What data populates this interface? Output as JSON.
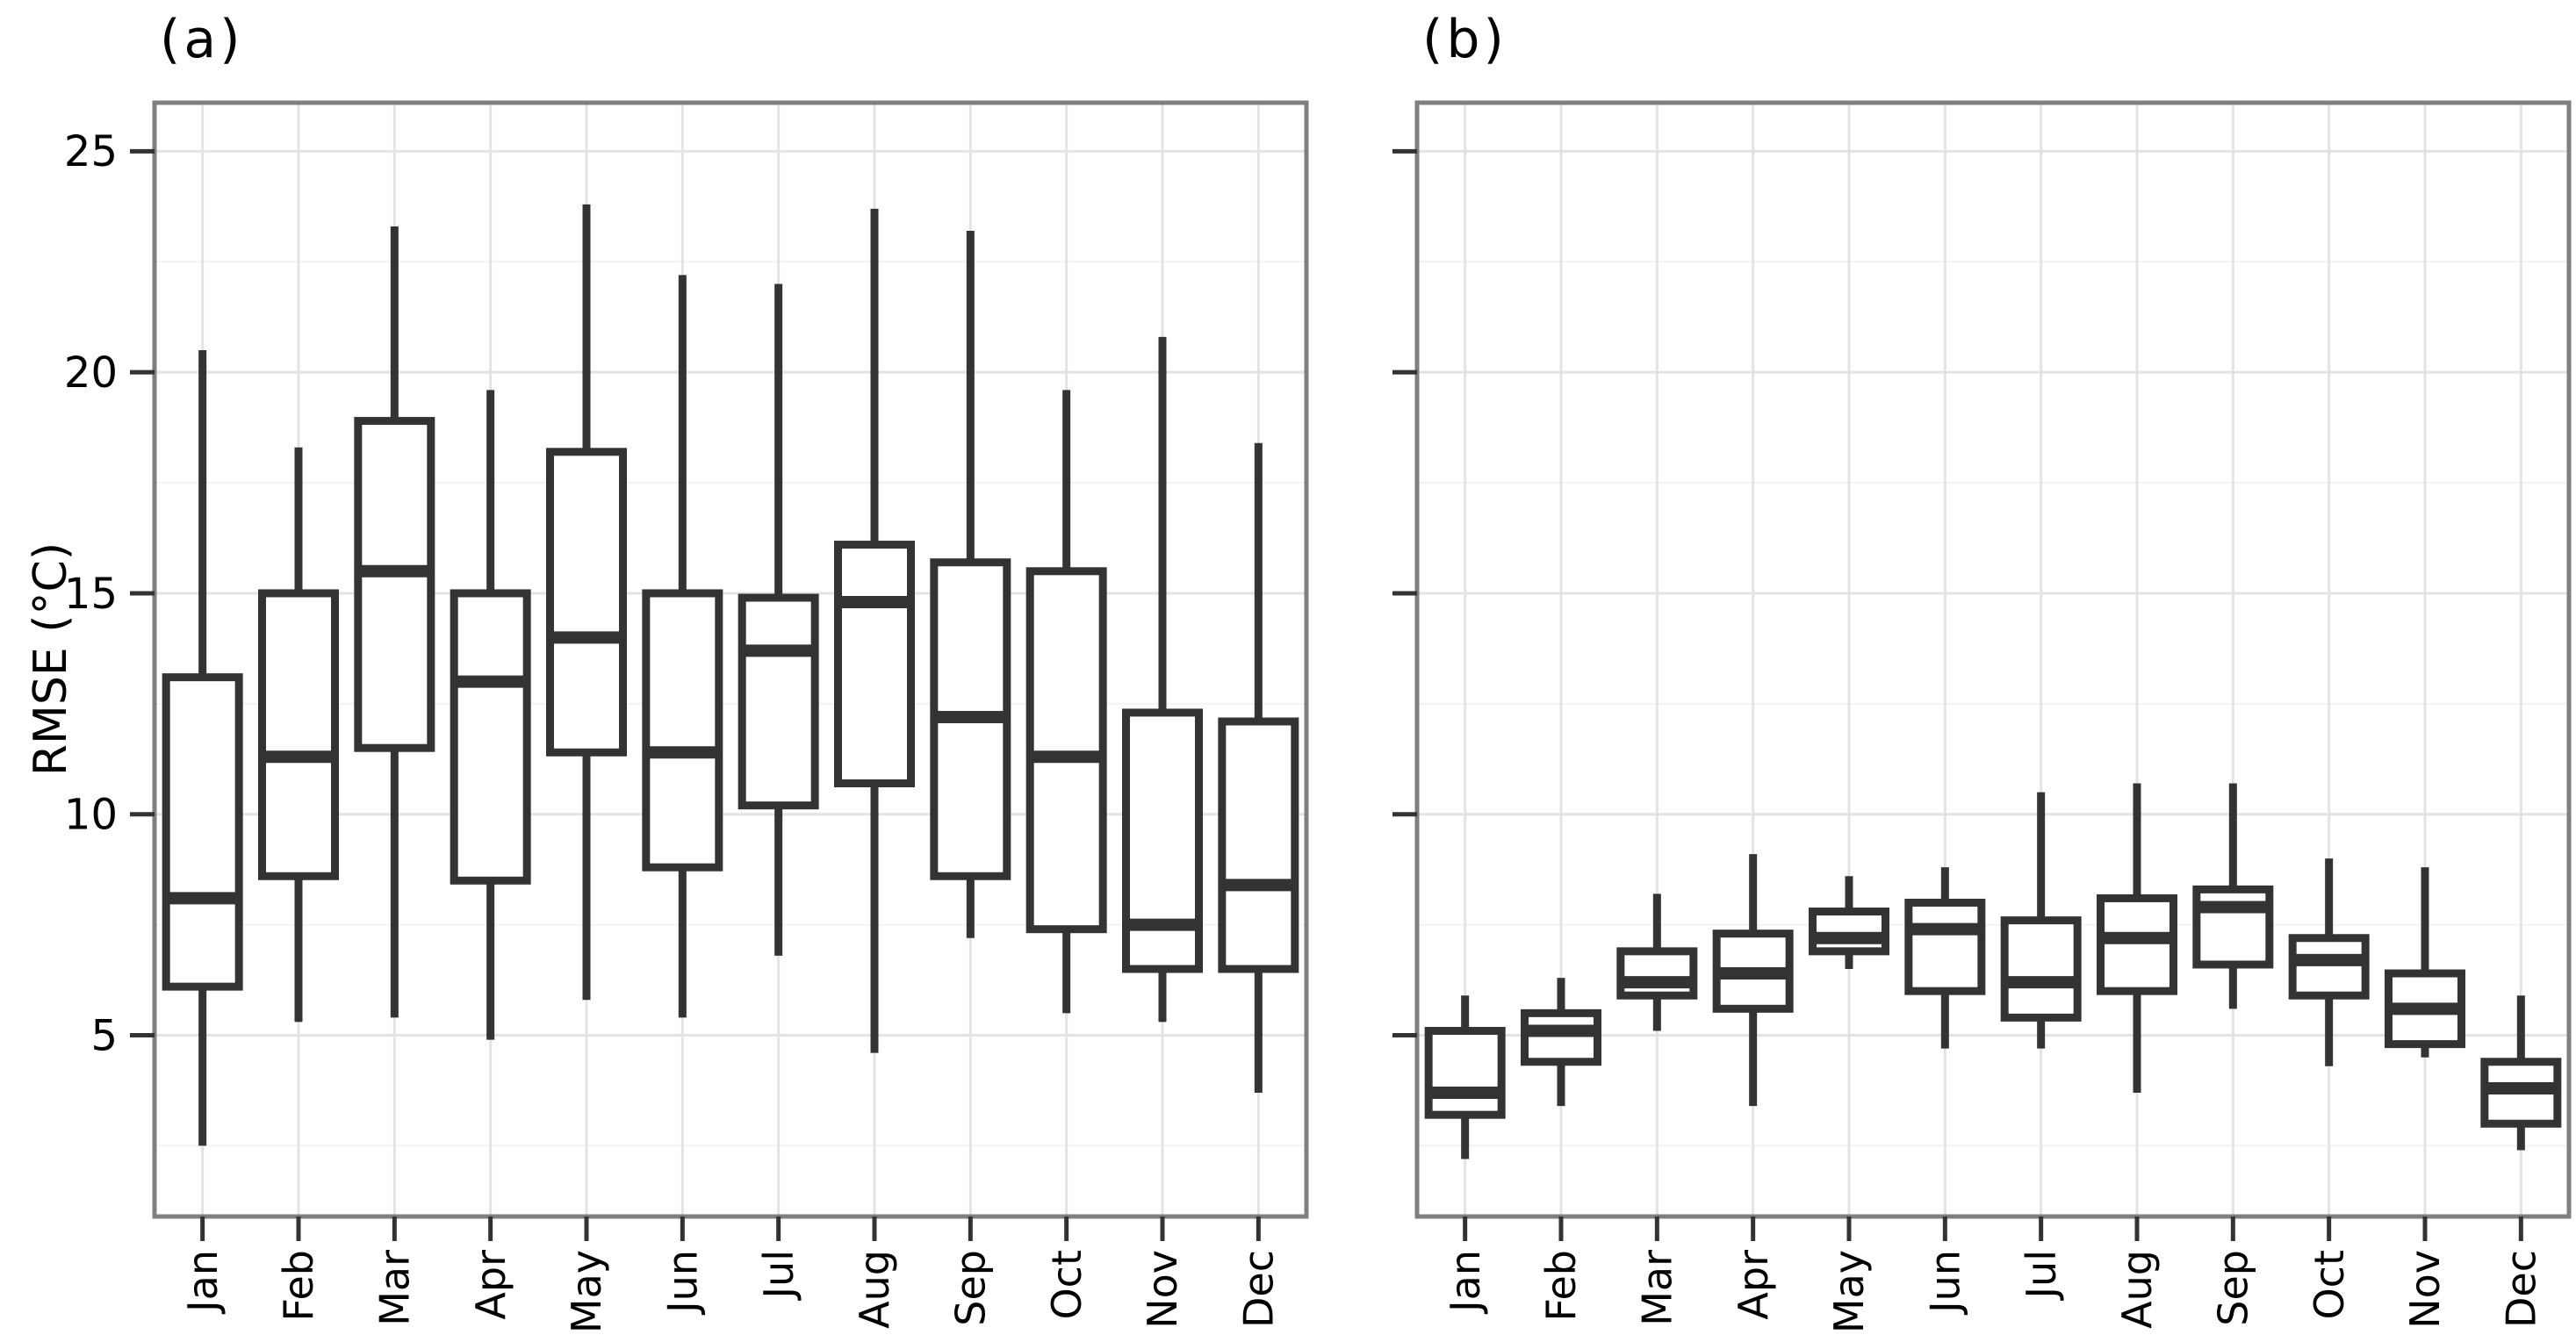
{
  "figure": {
    "ylabel": "RMSE (°C)",
    "background": "#ffffff"
  },
  "style": {
    "box_stroke": "#333333",
    "box_fill": "#ffffff",
    "grid_major": "#e3e3e3",
    "grid_minor": "#f2f2f2",
    "panel_border": "#7f7f7f",
    "tick_color": "#333333",
    "text_color": "#000000"
  },
  "chart_data": [
    {
      "type": "boxplot",
      "title": "(a)",
      "xlabel": "",
      "ylabel": "RMSE (°C)",
      "legend_position": "none",
      "grid": "major+minor",
      "categories": [
        "Jan",
        "Feb",
        "Mar",
        "Apr",
        "May",
        "Jun",
        "Jul",
        "Aug",
        "Sep",
        "Oct",
        "Nov",
        "Dec"
      ],
      "yticks": [
        5,
        10,
        15,
        20,
        25
      ],
      "yticks_minor": [
        2.5,
        7.5,
        12.5,
        17.5,
        22.5
      ],
      "ylim": [
        0.9,
        26.1
      ],
      "show_ytick_labels": true,
      "boxes": [
        {
          "month": "Jan",
          "whisker_low": 2.5,
          "q1": 6.1,
          "median": 8.1,
          "q3": 13.1,
          "whisker_high": 20.5
        },
        {
          "month": "Feb",
          "whisker_low": 5.3,
          "q1": 8.6,
          "median": 11.3,
          "q3": 15.0,
          "whisker_high": 18.3
        },
        {
          "month": "Mar",
          "whisker_low": 5.4,
          "q1": 11.5,
          "median": 15.5,
          "q3": 18.9,
          "whisker_high": 23.3
        },
        {
          "month": "Apr",
          "whisker_low": 4.9,
          "q1": 8.5,
          "median": 13.0,
          "q3": 15.0,
          "whisker_high": 19.6
        },
        {
          "month": "May",
          "whisker_low": 5.8,
          "q1": 11.4,
          "median": 14.0,
          "q3": 18.2,
          "whisker_high": 23.8
        },
        {
          "month": "Jun",
          "whisker_low": 5.4,
          "q1": 8.8,
          "median": 11.4,
          "q3": 15.0,
          "whisker_high": 22.2
        },
        {
          "month": "Jul",
          "whisker_low": 6.8,
          "q1": 10.2,
          "median": 13.7,
          "q3": 14.9,
          "whisker_high": 22.0
        },
        {
          "month": "Aug",
          "whisker_low": 4.6,
          "q1": 10.7,
          "median": 14.8,
          "q3": 16.1,
          "whisker_high": 23.7
        },
        {
          "month": "Sep",
          "whisker_low": 7.2,
          "q1": 8.6,
          "median": 12.2,
          "q3": 15.7,
          "whisker_high": 23.2
        },
        {
          "month": "Oct",
          "whisker_low": 5.5,
          "q1": 7.4,
          "median": 11.3,
          "q3": 15.5,
          "whisker_high": 19.6
        },
        {
          "month": "Nov",
          "whisker_low": 5.3,
          "q1": 6.5,
          "median": 7.5,
          "q3": 12.3,
          "whisker_high": 20.8
        },
        {
          "month": "Dec",
          "whisker_low": 3.7,
          "q1": 6.5,
          "median": 8.4,
          "q3": 12.1,
          "whisker_high": 18.4
        }
      ]
    },
    {
      "type": "boxplot",
      "title": "(b)",
      "xlabel": "",
      "ylabel": "RMSE (°C)",
      "legend_position": "none",
      "grid": "major+minor",
      "categories": [
        "Jan",
        "Feb",
        "Mar",
        "Apr",
        "May",
        "Jun",
        "Jul",
        "Aug",
        "Sep",
        "Oct",
        "Nov",
        "Dec"
      ],
      "yticks": [
        5,
        10,
        15,
        20,
        25
      ],
      "yticks_minor": [
        2.5,
        7.5,
        12.5,
        17.5,
        22.5
      ],
      "ylim": [
        0.9,
        26.1
      ],
      "show_ytick_labels": false,
      "boxes": [
        {
          "month": "Jan",
          "whisker_low": 2.2,
          "q1": 3.2,
          "median": 3.7,
          "q3": 5.1,
          "whisker_high": 5.9
        },
        {
          "month": "Feb",
          "whisker_low": 3.4,
          "q1": 4.4,
          "median": 5.1,
          "q3": 5.5,
          "whisker_high": 6.3
        },
        {
          "month": "Mar",
          "whisker_low": 5.1,
          "q1": 5.9,
          "median": 6.2,
          "q3": 6.9,
          "whisker_high": 8.2
        },
        {
          "month": "Apr",
          "whisker_low": 3.4,
          "q1": 5.6,
          "median": 6.4,
          "q3": 7.3,
          "whisker_high": 9.1
        },
        {
          "month": "May",
          "whisker_low": 6.5,
          "q1": 6.9,
          "median": 7.2,
          "q3": 7.8,
          "whisker_high": 8.6
        },
        {
          "month": "Jun",
          "whisker_low": 4.7,
          "q1": 6.0,
          "median": 7.4,
          "q3": 8.0,
          "whisker_high": 8.8
        },
        {
          "month": "Jul",
          "whisker_low": 4.7,
          "q1": 5.4,
          "median": 6.2,
          "q3": 7.6,
          "whisker_high": 10.5
        },
        {
          "month": "Aug",
          "whisker_low": 3.7,
          "q1": 6.0,
          "median": 7.2,
          "q3": 8.1,
          "whisker_high": 10.7
        },
        {
          "month": "Sep",
          "whisker_low": 5.6,
          "q1": 6.6,
          "median": 7.9,
          "q3": 8.3,
          "whisker_high": 10.7
        },
        {
          "month": "Oct",
          "whisker_low": 4.3,
          "q1": 5.9,
          "median": 6.7,
          "q3": 7.2,
          "whisker_high": 9.0
        },
        {
          "month": "Nov",
          "whisker_low": 4.5,
          "q1": 4.8,
          "median": 5.6,
          "q3": 6.4,
          "whisker_high": 8.8
        },
        {
          "month": "Dec",
          "whisker_low": 2.4,
          "q1": 3.0,
          "median": 3.8,
          "q3": 4.4,
          "whisker_high": 5.9
        }
      ]
    }
  ]
}
